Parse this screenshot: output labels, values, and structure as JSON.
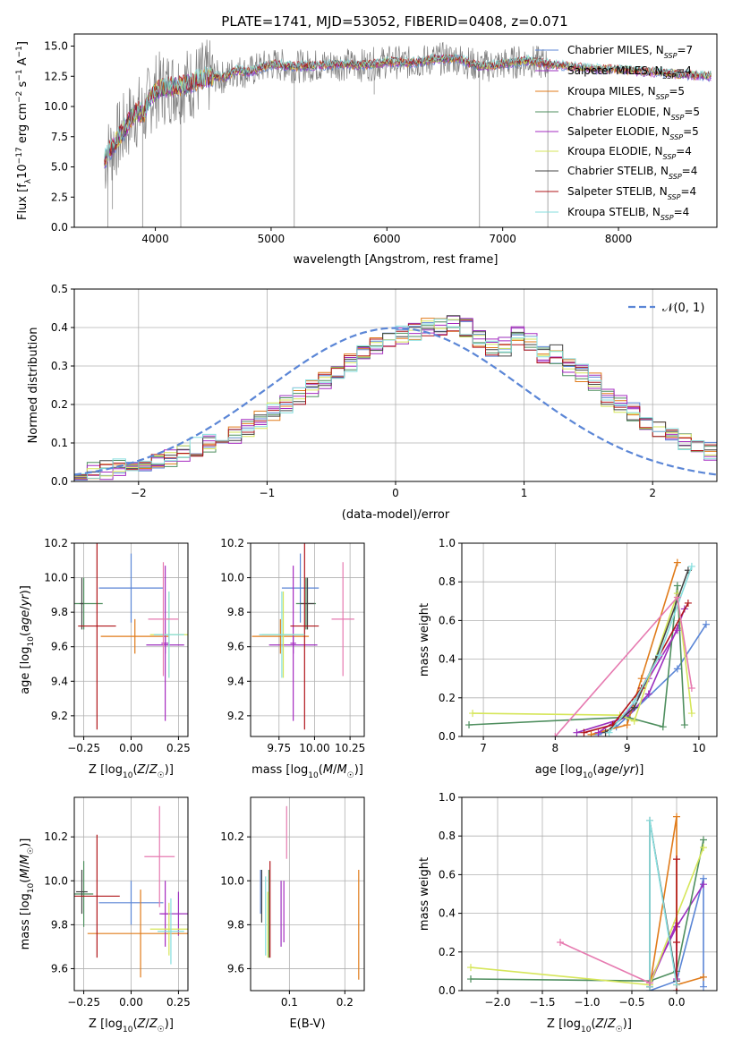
{
  "figure_title": "PLATE=1741, MJD=53052, FIBERID=0408, z=0.071",
  "series": [
    {
      "name": "Chabrier MILES",
      "nssp": "7",
      "color": "#5b86d6"
    },
    {
      "name": "Salpeter MILES",
      "nssp": "4",
      "color": "#9b2fbe"
    },
    {
      "name": "Kroupa MILES",
      "nssp": "5",
      "color": "#e07b1a"
    },
    {
      "name": "Chabrier ELODIE",
      "nssp": "5",
      "color": "#4f8f5f"
    },
    {
      "name": "Salpeter ELODIE",
      "nssp": "5",
      "color": "#a62bc0"
    },
    {
      "name": "Kroupa ELODIE",
      "nssp": "4",
      "color": "#d6e65a"
    },
    {
      "name": "Chabrier STELIB",
      "nssp": "4",
      "color": "#444444"
    },
    {
      "name": "Salpeter STELIB",
      "nssp": "4",
      "color": "#b0151a"
    },
    {
      "name": "Kroupa STELIB",
      "nssp": "4",
      "color": "#86dede"
    }
  ],
  "data_color": "#808080",
  "pink_color": "#e67ab0",
  "chart_data": [
    {
      "id": "spectrum",
      "type": "line",
      "title": "PLATE=1741, MJD=53052, FIBERID=0408, z=0.071",
      "xlabel": "wavelength [Angstrom, rest frame]",
      "ylabel": "Flux [f_λ 10^-17 erg cm^-2 s^-1 A^-1]",
      "xlim": [
        3300,
        8850
      ],
      "ylim": [
        0,
        16
      ],
      "xticks": [
        4000,
        5000,
        6000,
        7000,
        8000
      ],
      "yticks": [
        "0.0",
        "2.5",
        "5.0",
        "7.5",
        "10.0",
        "12.5",
        "15.0"
      ],
      "grid": false,
      "legend": "top-right",
      "x": [
        3560,
        3600,
        3650,
        3700,
        3750,
        3800,
        3850,
        3900,
        3950,
        4000,
        4100,
        4200,
        4300,
        4400,
        4500,
        4600,
        4700,
        4800,
        4900,
        5000,
        5200,
        5400,
        5600,
        5800,
        6000,
        6200,
        6400,
        6600,
        6800,
        7000,
        7200,
        7400,
        7600,
        7800,
        8000,
        8200,
        8400,
        8600,
        8800
      ],
      "model_flux": [
        5.5,
        6.2,
        7.0,
        7.6,
        8.4,
        9.2,
        9.6,
        9.3,
        10.6,
        11.3,
        11.6,
        11.7,
        11.9,
        12.3,
        12.5,
        12.4,
        13.0,
        12.8,
        13.2,
        13.5,
        13.3,
        13.4,
        13.5,
        13.4,
        13.7,
        13.6,
        13.9,
        14.0,
        13.3,
        13.5,
        13.8,
        13.5,
        13.3,
        13.1,
        13.1,
        12.9,
        12.8,
        12.6,
        12.5
      ],
      "absorption_lines": [
        {
          "x": 3590,
          "y": 0
        },
        {
          "x": 3630,
          "y": 1.5
        },
        {
          "x": 3890,
          "y": 0
        },
        {
          "x": 4220,
          "y": 0
        },
        {
          "x": 5200,
          "y": 0
        },
        {
          "x": 5890,
          "y": 11
        },
        {
          "x": 6800,
          "y": 0
        },
        {
          "x": 7390,
          "y": 0
        }
      ]
    },
    {
      "id": "residuals",
      "type": "bar",
      "xlabel": "(data-model)/error",
      "ylabel": "Normed distribution",
      "xlim": [
        -2.5,
        2.5
      ],
      "ylim": [
        0,
        0.5
      ],
      "xticks": [
        "−2",
        "−1",
        "0",
        "1",
        "2"
      ],
      "yticks": [
        "0.0",
        "0.1",
        "0.2",
        "0.3",
        "0.4",
        "0.5"
      ],
      "grid": true,
      "legend": "top-right",
      "gaussian_label": "𝒩(0, 1)",
      "gaussian_color": "#5b86d6",
      "bin_width": 0.1,
      "bin_start": -2.5,
      "histogram": [
        0.02,
        0.025,
        0.03,
        0.035,
        0.04,
        0.05,
        0.055,
        0.06,
        0.07,
        0.09,
        0.1,
        0.11,
        0.12,
        0.14,
        0.16,
        0.18,
        0.2,
        0.22,
        0.24,
        0.26,
        0.28,
        0.31,
        0.33,
        0.35,
        0.37,
        0.38,
        0.39,
        0.4,
        0.4,
        0.41,
        0.4,
        0.37,
        0.35,
        0.35,
        0.38,
        0.36,
        0.33,
        0.33,
        0.3,
        0.28,
        0.26,
        0.22,
        0.2,
        0.18,
        0.16,
        0.14,
        0.12,
        0.1,
        0.09,
        0.08,
        0.07,
        0.06,
        0.05,
        0.05,
        0.04,
        0.035,
        0.03,
        0.025,
        0.02,
        0.02
      ]
    },
    {
      "id": "age-vs-Z",
      "type": "scatter",
      "xlabel": "Z [log10(Z/Z☉)]",
      "ylabel": "age  [log10(age/yr)]",
      "xlim": [
        -0.3,
        0.3
      ],
      "ylim": [
        9.08,
        10.2
      ],
      "xticks": [
        "−0.25",
        "0.00",
        "0.25"
      ],
      "yticks": [
        "9.2",
        "9.4",
        "9.6",
        "9.8",
        "10.0",
        "10.2"
      ],
      "grid": true,
      "points": [
        {
          "series": 0,
          "x": 0.0,
          "y": 9.94,
          "xerr": 0.17,
          "yerr": 0.2
        },
        {
          "series": 1,
          "x": 0.18,
          "y": 9.61,
          "xerr": 0.1,
          "yerr": 0.05
        },
        {
          "series": 2,
          "x": 0.02,
          "y": 9.66,
          "xerr": 0.18,
          "yerr": 0.1
        },
        {
          "series": 3,
          "x": -0.25,
          "y": 9.85,
          "xerr": 0.1,
          "yerr": 0.15
        },
        {
          "series": 4,
          "x": 0.18,
          "y": 9.62,
          "xerr": 0.02,
          "yerr": 0.45
        },
        {
          "series": 5,
          "x": 0.2,
          "y": 9.67,
          "xerr": 0.1,
          "yerr": 0.25
        },
        {
          "series": 6,
          "x": -0.26,
          "y": 9.85,
          "xerr": 0.01,
          "yerr": 0.15
        },
        {
          "series": 7,
          "x": -0.18,
          "y": 9.72,
          "xerr": 0.1,
          "yerr": 0.6
        },
        {
          "series": 8,
          "x": 0.2,
          "y": 9.67,
          "xerr": 0.08,
          "yerr": 0.25
        },
        {
          "series": "pink",
          "x": 0.17,
          "y": 9.76,
          "xerr": 0.08,
          "yerr": 0.33
        }
      ]
    },
    {
      "id": "age-vs-mass",
      "type": "scatter",
      "xlabel": "mass [log10(M/M☉)]",
      "ylabel": "",
      "xlim": [
        9.55,
        10.35
      ],
      "ylim": [
        9.08,
        10.2
      ],
      "xticks": [
        "9.75",
        "10.00",
        "10.25"
      ],
      "yticks": [
        "9.2",
        "9.4",
        "9.6",
        "9.8",
        "10.0",
        "10.2"
      ],
      "grid": true,
      "points": [
        {
          "series": 0,
          "x": 9.9,
          "y": 9.94,
          "xerr": 0.13,
          "yerr": 0.2
        },
        {
          "series": 1,
          "x": 9.85,
          "y": 9.61,
          "xerr": 0.17,
          "yerr": 0.05
        },
        {
          "series": 2,
          "x": 9.76,
          "y": 9.66,
          "xerr": 0.2,
          "yerr": 0.1
        },
        {
          "series": 3,
          "x": 9.94,
          "y": 9.85,
          "xerr": 0.07,
          "yerr": 0.15
        },
        {
          "series": 4,
          "x": 9.85,
          "y": 9.62,
          "xerr": 0.02,
          "yerr": 0.45
        },
        {
          "series": 5,
          "x": 9.78,
          "y": 9.67,
          "xerr": 0.15,
          "yerr": 0.25
        },
        {
          "series": 6,
          "x": 9.95,
          "y": 9.85,
          "xerr": 0.05,
          "yerr": 0.15
        },
        {
          "series": 7,
          "x": 9.93,
          "y": 9.72,
          "xerr": 0.1,
          "yerr": 0.6
        },
        {
          "series": 8,
          "x": 9.77,
          "y": 9.67,
          "xerr": 0.16,
          "yerr": 0.25
        },
        {
          "series": "pink",
          "x": 10.2,
          "y": 9.76,
          "xerr": 0.08,
          "yerr": 0.33
        }
      ]
    },
    {
      "id": "weight-vs-age",
      "type": "line",
      "xlabel": "age  [log10(age/yr)]",
      "ylabel": "mass weight",
      "xlim": [
        6.7,
        10.25
      ],
      "ylim": [
        0,
        1
      ],
      "xticks": [
        "7",
        "8",
        "9",
        "10"
      ],
      "yticks": [
        "0.0",
        "0.2",
        "0.4",
        "0.6",
        "0.8",
        "1.0"
      ],
      "grid": true,
      "lines": [
        {
          "series": 0,
          "x": [
            8.6,
            8.85,
            9.0,
            9.7,
            10.1
          ],
          "y": [
            0.01,
            0.05,
            0.1,
            0.35,
            0.58
          ]
        },
        {
          "series": 1,
          "x": [
            8.3,
            9.0,
            9.3,
            9.7,
            9.8
          ],
          "y": [
            0.02,
            0.1,
            0.22,
            0.56,
            0.66
          ]
        },
        {
          "series": 2,
          "x": [
            8.5,
            9.0,
            9.2,
            9.7
          ],
          "y": [
            0.01,
            0.06,
            0.3,
            0.9
          ]
        },
        {
          "series": 3,
          "x": [
            6.8,
            9.0,
            9.5,
            9.7,
            9.8
          ],
          "y": [
            0.06,
            0.1,
            0.05,
            0.78,
            0.06
          ]
        },
        {
          "series": 4,
          "x": [
            8.6,
            9.0,
            9.3,
            9.7
          ],
          "y": [
            0.02,
            0.12,
            0.3,
            0.55
          ]
        },
        {
          "series": 5,
          "x": [
            6.85,
            8.9,
            9.1,
            9.7,
            9.9
          ],
          "y": [
            0.12,
            0.11,
            0.08,
            0.74,
            0.12
          ]
        },
        {
          "series": 6,
          "x": [
            8.7,
            9.1,
            9.4,
            9.85
          ],
          "y": [
            0.02,
            0.15,
            0.4,
            0.86
          ]
        },
        {
          "series": 7,
          "x": [
            8.4,
            8.8,
            9.2,
            9.85
          ],
          "y": [
            0.02,
            0.06,
            0.25,
            0.69
          ]
        },
        {
          "series": 8,
          "x": [
            8.75,
            9.1,
            9.45,
            9.9
          ],
          "y": [
            0.02,
            0.18,
            0.42,
            0.88
          ]
        },
        {
          "series": "pink",
          "x": [
            8.0,
            9.7,
            9.9
          ],
          "y": [
            0.0,
            0.72,
            0.25
          ]
        }
      ]
    },
    {
      "id": "mass-vs-Z",
      "type": "scatter",
      "xlabel": "Z [log10(Z/Z☉)]",
      "ylabel": "mass [log10(M/M☉)]",
      "xlim": [
        -0.3,
        0.3
      ],
      "ylim": [
        9.5,
        10.38
      ],
      "xticks": [
        "−0.25",
        "0.00",
        "0.25"
      ],
      "yticks": [
        "9.6",
        "9.8",
        "10.0",
        "10.2"
      ],
      "grid": true,
      "points": [
        {
          "series": 0,
          "x": 0.0,
          "y": 9.9,
          "xerr": 0.17,
          "yerr": 0.1
        },
        {
          "series": 1,
          "x": 0.25,
          "y": 9.85,
          "xerr": 0.1,
          "yerr": 0.1
        },
        {
          "series": 2,
          "x": 0.05,
          "y": 9.76,
          "xerr": 0.28,
          "yerr": 0.2
        },
        {
          "series": 3,
          "x": -0.25,
          "y": 9.94,
          "xerr": 0.05,
          "yerr": 0.15
        },
        {
          "series": 4,
          "x": 0.18,
          "y": 9.85,
          "xerr": 0.02,
          "yerr": 0.15
        },
        {
          "series": 5,
          "x": 0.2,
          "y": 9.78,
          "xerr": 0.1,
          "yerr": 0.12
        },
        {
          "series": 6,
          "x": -0.26,
          "y": 9.95,
          "xerr": 0.03,
          "yerr": 0.1
        },
        {
          "series": 7,
          "x": -0.18,
          "y": 9.93,
          "xerr": 0.12,
          "yerr": 0.28
        },
        {
          "series": 8,
          "x": 0.21,
          "y": 9.77,
          "xerr": 0.07,
          "yerr": 0.15
        },
        {
          "series": "pink",
          "x": 0.15,
          "y": 10.11,
          "xerr": 0.08,
          "yerr": 0.23
        }
      ]
    },
    {
      "id": "mass-vs-ebv",
      "type": "scatter",
      "xlabel": "E(B-V)",
      "ylabel": "",
      "xlim": [
        0.03,
        0.235
      ],
      "ylim": [
        9.5,
        10.38
      ],
      "xticks": [
        "0.1",
        "0.2"
      ],
      "yticks": [
        "9.6",
        "9.8",
        "10.0",
        "10.2"
      ],
      "grid": true,
      "points": [
        {
          "series": 0,
          "x": 0.048,
          "y": 9.95,
          "yerr": 0.1
        },
        {
          "series": 1,
          "x": 0.085,
          "y": 9.85,
          "yerr": 0.15
        },
        {
          "series": 2,
          "x": 0.225,
          "y": 9.8,
          "yerr": 0.25
        },
        {
          "series": 3,
          "x": 0.063,
          "y": 9.85,
          "yerr": 0.2
        },
        {
          "series": 4,
          "x": 0.09,
          "y": 9.86,
          "yerr": 0.14
        },
        {
          "series": 5,
          "x": 0.061,
          "y": 9.8,
          "yerr": 0.15
        },
        {
          "series": 6,
          "x": 0.05,
          "y": 9.93,
          "yerr": 0.12
        },
        {
          "series": 7,
          "x": 0.065,
          "y": 9.87,
          "yerr": 0.22
        },
        {
          "series": 8,
          "x": 0.057,
          "y": 9.84,
          "yerr": 0.18
        },
        {
          "series": "pink",
          "x": 0.095,
          "y": 10.22,
          "yerr": 0.12
        }
      ]
    },
    {
      "id": "weight-vs-Z",
      "type": "line",
      "xlabel": "Z [log10(Z/Z☉)]",
      "ylabel": "mass weight",
      "xlim": [
        -2.4,
        0.45
      ],
      "ylim": [
        0,
        1
      ],
      "xticks": [
        "−2.0",
        "−1.5",
        "−1.0",
        "−0.5",
        "0.0"
      ],
      "yticks": [
        "0.0",
        "0.2",
        "0.4",
        "0.6",
        "0.8",
        "1.0"
      ],
      "grid": true,
      "lines": [
        {
          "series": 0,
          "x": [
            -0.3,
            0.0,
            0.3,
            0.3
          ],
          "y": [
            0.0,
            0.05,
            0.58,
            0.02
          ]
        },
        {
          "series": 1,
          "x": [
            -0.3,
            0.0,
            0.3
          ],
          "y": [
            0.05,
            0.33,
            0.55
          ]
        },
        {
          "series": 2,
          "x": [
            -0.3,
            0.0,
            0.0,
            0.3
          ],
          "y": [
            0.02,
            0.9,
            0.03,
            0.07
          ]
        },
        {
          "series": 3,
          "x": [
            -2.3,
            -0.3,
            0.0,
            0.3
          ],
          "y": [
            0.06,
            0.05,
            0.1,
            0.78
          ]
        },
        {
          "series": 4,
          "x": [
            -0.3,
            0.0,
            0.0
          ],
          "y": [
            0.03,
            0.35,
            0.06
          ]
        },
        {
          "series": 5,
          "x": [
            -2.3,
            -0.3,
            0.3
          ],
          "y": [
            0.12,
            0.03,
            0.74
          ]
        },
        {
          "series": 6,
          "x": [
            -0.3,
            -0.3,
            0.0
          ],
          "y": [
            0.02,
            0.88,
            0.05
          ]
        },
        {
          "series": 7,
          "x": [
            -0.0,
            0.0,
            0.0
          ],
          "y": [
            0.68,
            0.25,
            0.0
          ]
        },
        {
          "series": 8,
          "x": [
            -0.3,
            -0.3,
            0.0
          ],
          "y": [
            0.02,
            0.88,
            0.03
          ]
        },
        {
          "series": "pink",
          "x": [
            -1.3,
            -0.3
          ],
          "y": [
            0.25,
            0.04
          ]
        }
      ]
    }
  ]
}
